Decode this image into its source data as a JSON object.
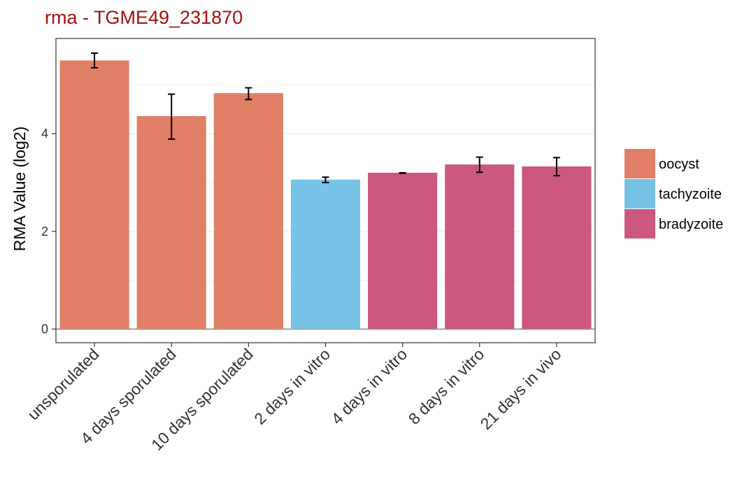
{
  "chart_data": {
    "type": "bar",
    "title": "rma - TGME49_231870",
    "xlabel": "",
    "ylabel": "RMA Value (log2)",
    "ylim": [
      -0.28,
      5.95
    ],
    "yticks": [
      0,
      2,
      4
    ],
    "grid": true,
    "legend_position": "right",
    "categories": [
      "unsporulated",
      "4 days sporulated",
      "10 days sporulated",
      "2 days in vitro",
      "4 days in vitro",
      "8 days in vitro",
      "21 days in vivo"
    ],
    "values": [
      5.5,
      4.36,
      4.83,
      3.06,
      3.2,
      3.37,
      3.33
    ],
    "error_low": [
      5.35,
      3.89,
      4.7,
      3.0,
      3.19,
      3.21,
      3.14
    ],
    "error_high": [
      5.65,
      4.81,
      4.94,
      3.11,
      3.2,
      3.52,
      3.51
    ],
    "groups": [
      "oocyst",
      "oocyst",
      "oocyst",
      "tachyzoite",
      "bradyzoite",
      "bradyzoite",
      "bradyzoite"
    ],
    "legend": [
      {
        "label": "oocyst",
        "color": "#E07F65"
      },
      {
        "label": "tachyzoite",
        "color": "#77C3E5"
      },
      {
        "label": "bradyzoite",
        "color": "#CC5880"
      }
    ],
    "colors": {
      "title": "#A5100D",
      "panel_border": "#333333",
      "grid": "#EBEBEB",
      "zero_line": "#A0A0A0"
    }
  }
}
